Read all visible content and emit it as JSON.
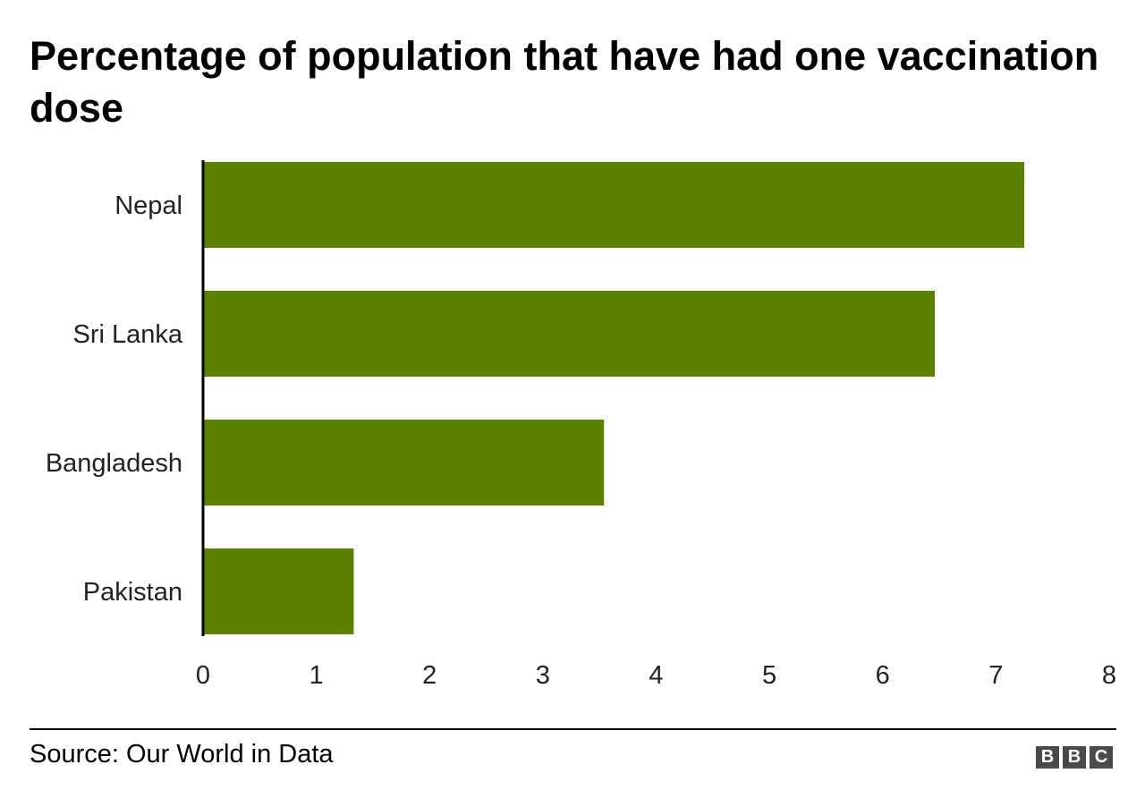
{
  "chart_data": {
    "type": "bar",
    "orientation": "horizontal",
    "title": "Percentage of population that have had one vaccination dose",
    "categories": [
      "Nepal",
      "Sri Lanka",
      "Bangladesh",
      "Pakistan"
    ],
    "values": [
      7.25,
      6.46,
      3.54,
      1.33
    ],
    "xlim": [
      0,
      8
    ],
    "xticks": [
      "0",
      "1",
      "2",
      "3",
      "4",
      "5",
      "6",
      "7",
      "8"
    ],
    "xlabel": "",
    "ylabel": "",
    "bar_color": "#5a8200",
    "grid": false
  },
  "footer": {
    "source": "Source: Our World in Data",
    "logo_letters": [
      "B",
      "B",
      "C"
    ]
  }
}
